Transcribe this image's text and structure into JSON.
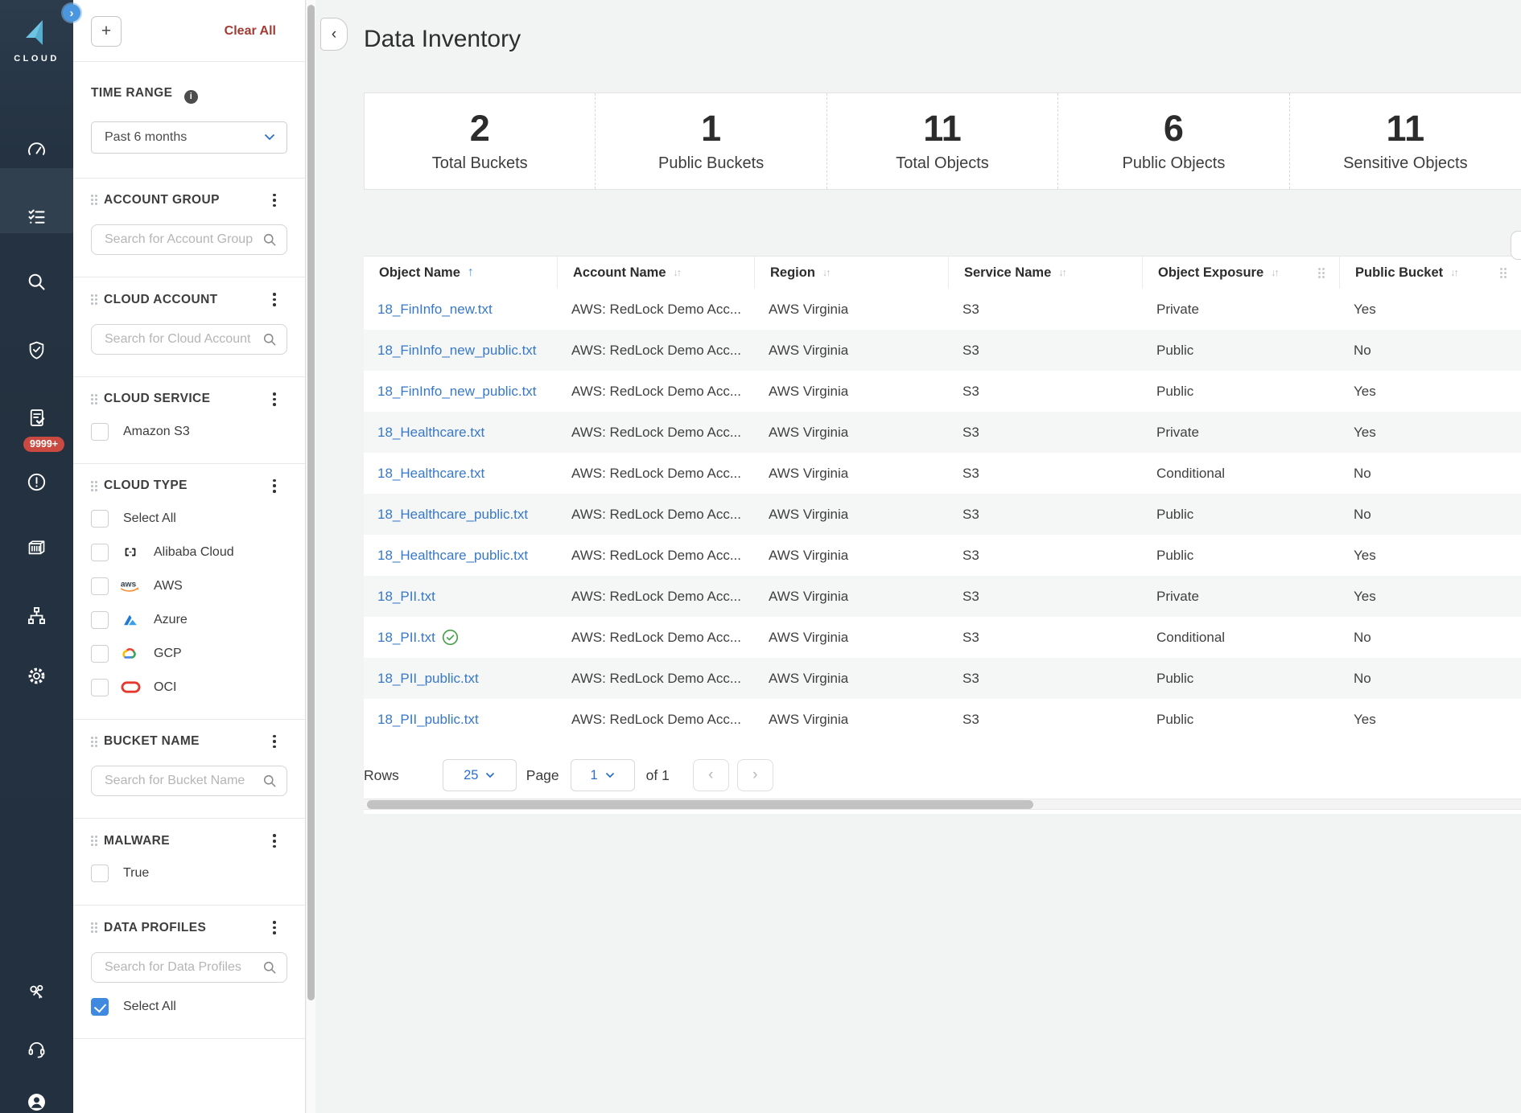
{
  "colors": {
    "sidebar_bg": "#22303f",
    "accent_blue": "#4a90e2",
    "link_blue": "#3778c8",
    "clear_all_red": "#a33b34",
    "badge_red": "#ca4a41",
    "checkbox_blue": "#3f8ae0",
    "check_green": "#43a047",
    "logo_blue": "#65bfe0"
  },
  "sidebar": {
    "logo_text": "CLOUD",
    "alerts_badge": "9999+",
    "nav_icons": [
      "dashboard-gauge-icon",
      "inventory-checklist-icon",
      "search-icon",
      "compliance-shield-icon",
      "reports-document-icon",
      "alerts-alert-icon",
      "compute-container-icon",
      "network-topology-icon",
      "settings-gear-icon",
      "access-keys-icon",
      "support-headset-icon",
      "profile-avatar-icon"
    ]
  },
  "filters": {
    "add_button_label": "+",
    "clear_all_label": "Clear All",
    "time_range": {
      "label": "TIME RANGE",
      "value": "Past 6 months"
    },
    "sections": [
      {
        "id": "account-group",
        "title": "ACCOUNT GROUP",
        "search_placeholder": "Search for Account Group"
      },
      {
        "id": "cloud-account",
        "title": "CLOUD ACCOUNT",
        "search_placeholder": "Search for Cloud Account"
      },
      {
        "id": "cloud-service",
        "title": "CLOUD SERVICE",
        "items": [
          {
            "label": "Amazon S3",
            "checked": false
          }
        ]
      },
      {
        "id": "cloud-type",
        "title": "CLOUD TYPE",
        "items": [
          {
            "label": "Select All",
            "checked": false
          },
          {
            "label": "Alibaba Cloud",
            "icon": "alibaba-cloud-icon",
            "checked": false
          },
          {
            "label": "AWS",
            "icon": "aws-icon",
            "checked": false
          },
          {
            "label": "Azure",
            "icon": "azure-icon",
            "checked": false
          },
          {
            "label": "GCP",
            "icon": "gcp-icon",
            "checked": false
          },
          {
            "label": "OCI",
            "icon": "oci-icon",
            "checked": false
          }
        ]
      },
      {
        "id": "bucket-name",
        "title": "BUCKET NAME",
        "search_placeholder": "Search for Bucket Name"
      },
      {
        "id": "malware",
        "title": "MALWARE",
        "items": [
          {
            "label": "True",
            "checked": false
          }
        ]
      },
      {
        "id": "data-profiles",
        "title": "DATA PROFILES",
        "search_placeholder": "Search for Data Profiles",
        "items": [
          {
            "label": "Select All",
            "checked": true
          }
        ]
      }
    ]
  },
  "header": {
    "title": "Data Inventory"
  },
  "stats": [
    {
      "value": "2",
      "label": "Total Buckets"
    },
    {
      "value": "1",
      "label": "Public Buckets"
    },
    {
      "value": "11",
      "label": "Total Objects"
    },
    {
      "value": "6",
      "label": "Public Objects"
    },
    {
      "value": "11",
      "label": "Sensitive Objects"
    }
  ],
  "table": {
    "columns": [
      {
        "label": "Object Name",
        "sort": "asc",
        "drag_handle": false
      },
      {
        "label": "Account Name",
        "sort": "none",
        "drag_handle": false
      },
      {
        "label": "Region",
        "sort": "none",
        "drag_handle": false
      },
      {
        "label": "Service Name",
        "sort": "none",
        "drag_handle": false
      },
      {
        "label": "Object Exposure",
        "sort": "none",
        "drag_handle": true
      },
      {
        "label": "Public Bucket",
        "sort": "none",
        "drag_handle": true
      }
    ],
    "rows": [
      {
        "object_name": "18_FinInfo_new.txt",
        "verified": false,
        "account_name": "AWS: RedLock Demo Acc...",
        "region": "AWS Virginia",
        "service_name": "S3",
        "object_exposure": "Private",
        "public_bucket": "Yes"
      },
      {
        "object_name": "18_FinInfo_new_public.txt",
        "verified": false,
        "account_name": "AWS: RedLock Demo Acc...",
        "region": "AWS Virginia",
        "service_name": "S3",
        "object_exposure": "Public",
        "public_bucket": "No"
      },
      {
        "object_name": "18_FinInfo_new_public.txt",
        "verified": false,
        "account_name": "AWS: RedLock Demo Acc...",
        "region": "AWS Virginia",
        "service_name": "S3",
        "object_exposure": "Public",
        "public_bucket": "Yes"
      },
      {
        "object_name": "18_Healthcare.txt",
        "verified": false,
        "account_name": "AWS: RedLock Demo Acc...",
        "region": "AWS Virginia",
        "service_name": "S3",
        "object_exposure": "Private",
        "public_bucket": "Yes"
      },
      {
        "object_name": "18_Healthcare.txt",
        "verified": false,
        "account_name": "AWS: RedLock Demo Acc...",
        "region": "AWS Virginia",
        "service_name": "S3",
        "object_exposure": "Conditional",
        "public_bucket": "No"
      },
      {
        "object_name": "18_Healthcare_public.txt",
        "verified": false,
        "account_name": "AWS: RedLock Demo Acc...",
        "region": "AWS Virginia",
        "service_name": "S3",
        "object_exposure": "Public",
        "public_bucket": "No"
      },
      {
        "object_name": "18_Healthcare_public.txt",
        "verified": false,
        "account_name": "AWS: RedLock Demo Acc...",
        "region": "AWS Virginia",
        "service_name": "S3",
        "object_exposure": "Public",
        "public_bucket": "Yes"
      },
      {
        "object_name": "18_PII.txt",
        "verified": false,
        "account_name": "AWS: RedLock Demo Acc...",
        "region": "AWS Virginia",
        "service_name": "S3",
        "object_exposure": "Private",
        "public_bucket": "Yes"
      },
      {
        "object_name": "18_PII.txt",
        "verified": true,
        "account_name": "AWS: RedLock Demo Acc...",
        "region": "AWS Virginia",
        "service_name": "S3",
        "object_exposure": "Conditional",
        "public_bucket": "No"
      },
      {
        "object_name": "18_PII_public.txt",
        "verified": false,
        "account_name": "AWS: RedLock Demo Acc...",
        "region": "AWS Virginia",
        "service_name": "S3",
        "object_exposure": "Public",
        "public_bucket": "No"
      },
      {
        "object_name": "18_PII_public.txt",
        "verified": false,
        "account_name": "AWS: RedLock Demo Acc...",
        "region": "AWS Virginia",
        "service_name": "S3",
        "object_exposure": "Public",
        "public_bucket": "Yes"
      }
    ]
  },
  "pagination": {
    "rows_label": "Rows",
    "rows_value": "25",
    "page_label": "Page",
    "page_value": "1",
    "of_label": "of 1"
  }
}
